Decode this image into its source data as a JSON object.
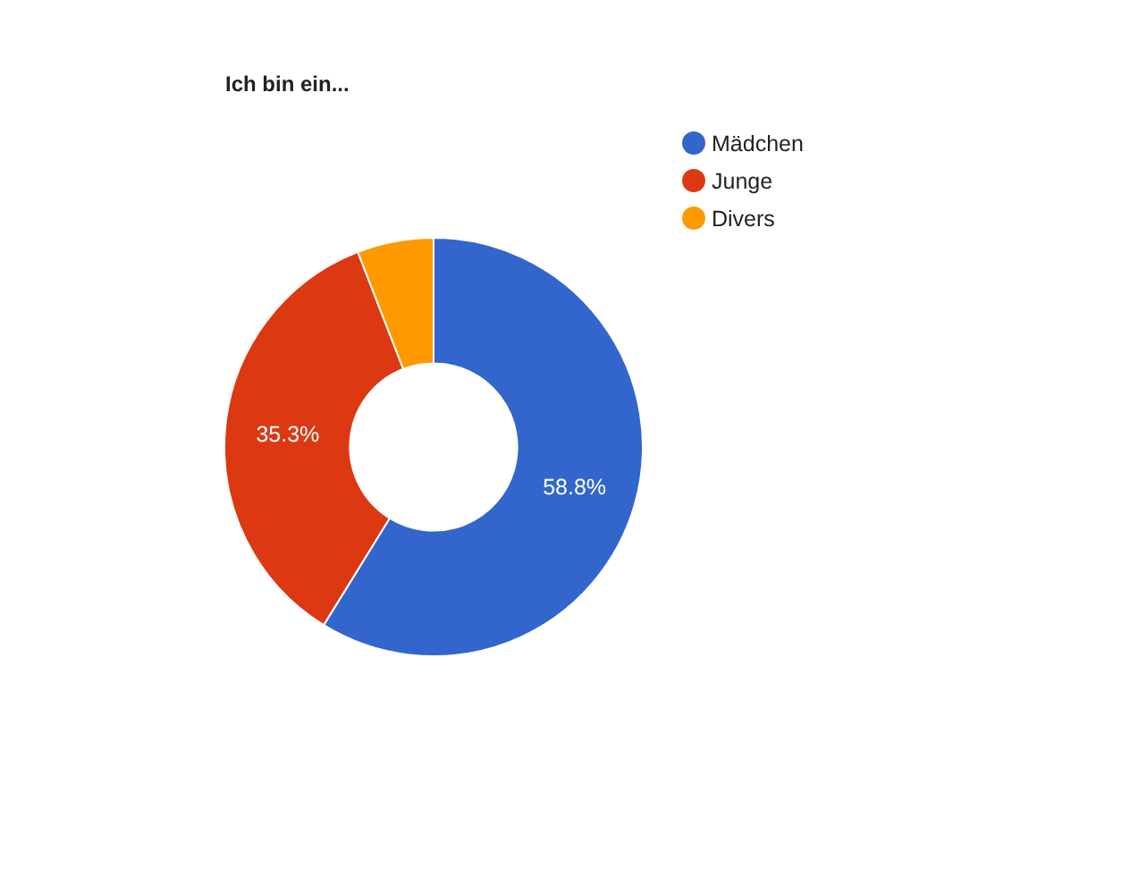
{
  "chart_data": {
    "type": "donut",
    "title": "Ich bin ein...",
    "categories": [
      "Mädchen",
      "Junge",
      "Divers"
    ],
    "values": [
      58.8,
      35.3,
      5.9
    ],
    "colors": [
      "#3366cc",
      "#dc3912",
      "#ff9900"
    ],
    "value_labels": [
      "58.8%",
      "35.3%",
      null
    ],
    "legend": "top right"
  }
}
